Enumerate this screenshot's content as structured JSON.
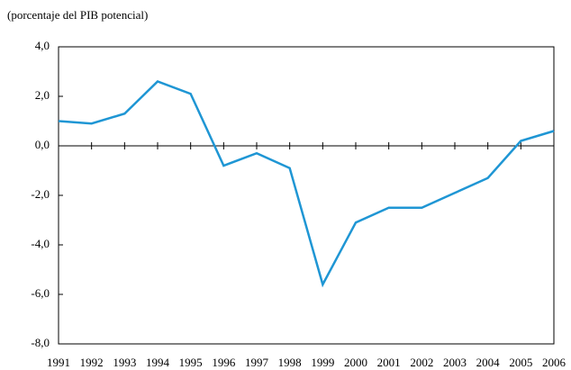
{
  "chart_data": {
    "type": "line",
    "y_label": "(porcentaje del PIB potencial)",
    "categories": [
      "1991",
      "1992",
      "1993",
      "1994",
      "1995",
      "1996",
      "1997",
      "1998",
      "1999",
      "2000",
      "2001",
      "2002",
      "2003",
      "2004",
      "2005",
      "2006"
    ],
    "series": [
      {
        "color": "#1f96d4",
        "values": [
          1.0,
          0.9,
          1.3,
          2.6,
          2.1,
          -0.8,
          -0.3,
          -0.9,
          -5.6,
          -3.1,
          -2.5,
          -2.5,
          -1.9,
          -1.3,
          0.2,
          0.6
        ]
      }
    ],
    "ylim": [
      -8,
      4
    ],
    "yticks": [
      {
        "value": -8,
        "label": "-8,0"
      },
      {
        "value": -6,
        "label": "-6,0"
      },
      {
        "value": -4,
        "label": "-4,0"
      },
      {
        "value": -2,
        "label": "-2,0"
      },
      {
        "value": 0,
        "label": "0,0"
      },
      {
        "value": 2,
        "label": "2,0"
      },
      {
        "value": 4,
        "label": "4,0"
      }
    ]
  }
}
